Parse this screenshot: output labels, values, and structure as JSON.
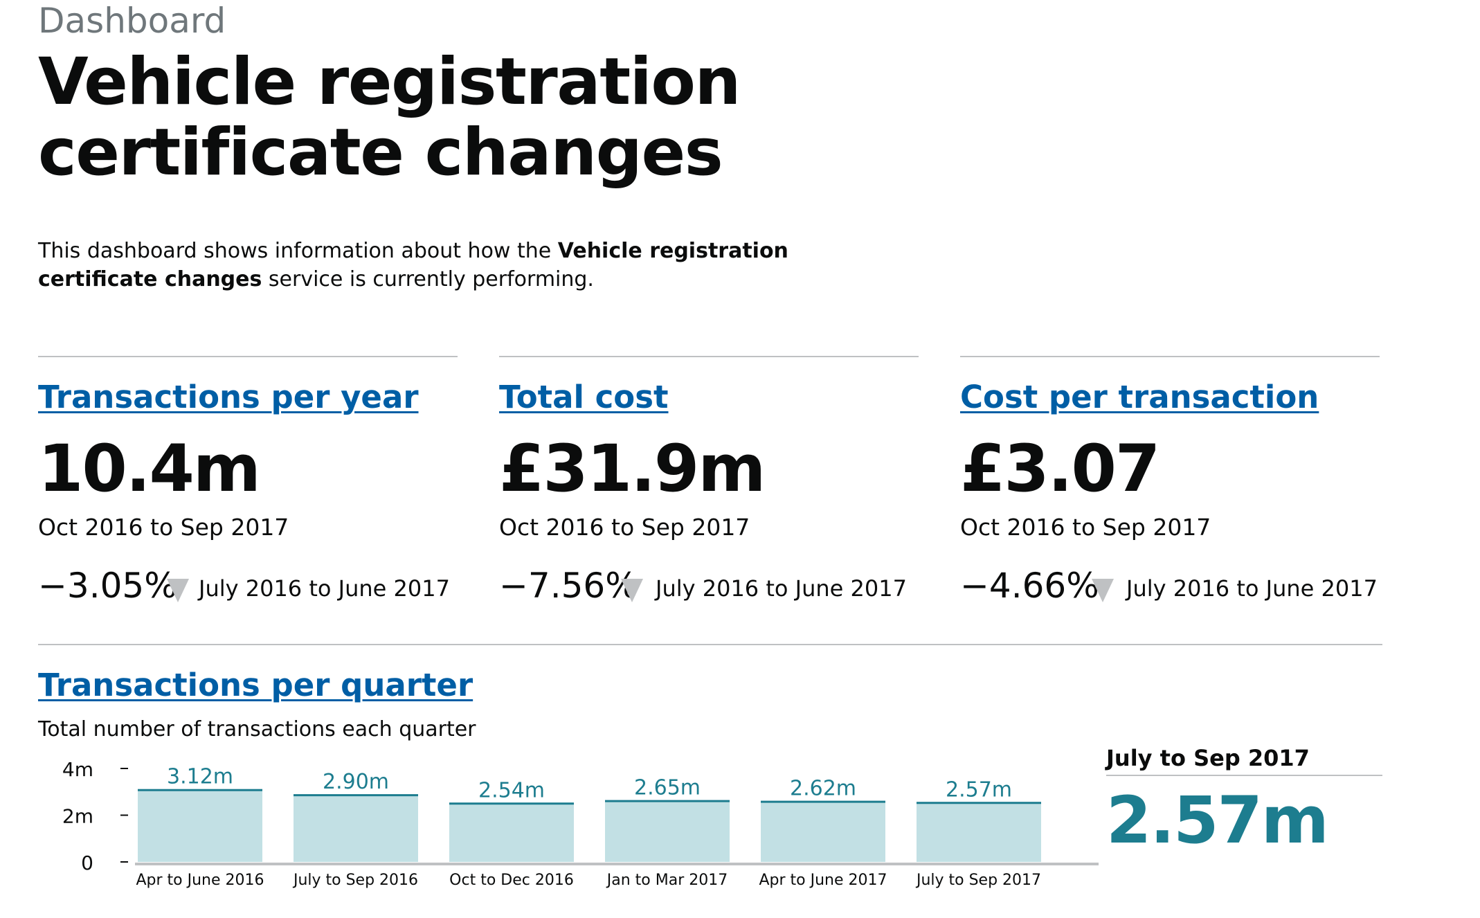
{
  "breadcrumb": "Dashboard",
  "title": "Vehicle registration certificate changes",
  "intro": {
    "before": "This dashboard shows information about how the ",
    "bold": "Vehicle registration certificate changes",
    "after": " service is currently performing."
  },
  "kpis": [
    {
      "title": "Transactions per year",
      "value": "10.4m",
      "period": "Oct 2016 to Sep 2017",
      "change": "−3.05%",
      "trend": "down",
      "comparison": "July 2016 to June 2017"
    },
    {
      "title": "Total cost",
      "value": "£31.9m",
      "period": "Oct 2016 to Sep 2017",
      "change": "−7.56%",
      "trend": "down",
      "comparison": "July 2016 to June 2017"
    },
    {
      "title": "Cost per transaction",
      "value": "£3.07",
      "period": "Oct 2016 to Sep 2017",
      "change": "−4.66%",
      "trend": "down",
      "comparison": "July 2016 to June 2017"
    }
  ],
  "quarterly": {
    "title": "Transactions per quarter",
    "description": "Total number of transactions each quarter",
    "latest_label": "July to Sep 2017",
    "latest_value": "2.57m"
  },
  "chart_data": {
    "type": "bar",
    "categories": [
      "Apr to June 2016",
      "July to Sep 2016",
      "Oct to Dec 2016",
      "Jan to Mar 2017",
      "Apr to June 2017",
      "July to Sep 2017"
    ],
    "values": [
      3.12,
      2.9,
      2.54,
      2.65,
      2.62,
      2.57
    ],
    "value_labels": [
      "3.12m",
      "2.90m",
      "2.54m",
      "2.65m",
      "2.62m",
      "2.57m"
    ],
    "unit": "millions",
    "y_ticks": [
      {
        "value": 4,
        "label": "4m"
      },
      {
        "value": 2,
        "label": "2m"
      },
      {
        "value": 0,
        "label": "0"
      }
    ],
    "ylim": [
      0,
      4
    ],
    "title": "",
    "xlabel": "",
    "ylabel": "",
    "colors": {
      "bar_fill": "#c2e0e4",
      "bar_top": "#1d7d8f",
      "label": "#1d7d8f",
      "axis": "#bfc1c3"
    }
  },
  "colors": {
    "link": "#005ea5",
    "text": "#0b0c0c",
    "secondary_text": "#6f777b",
    "rule": "#bfc1c3",
    "trend_icon": "#bfc1c3",
    "highlight": "#1d7d8f"
  }
}
